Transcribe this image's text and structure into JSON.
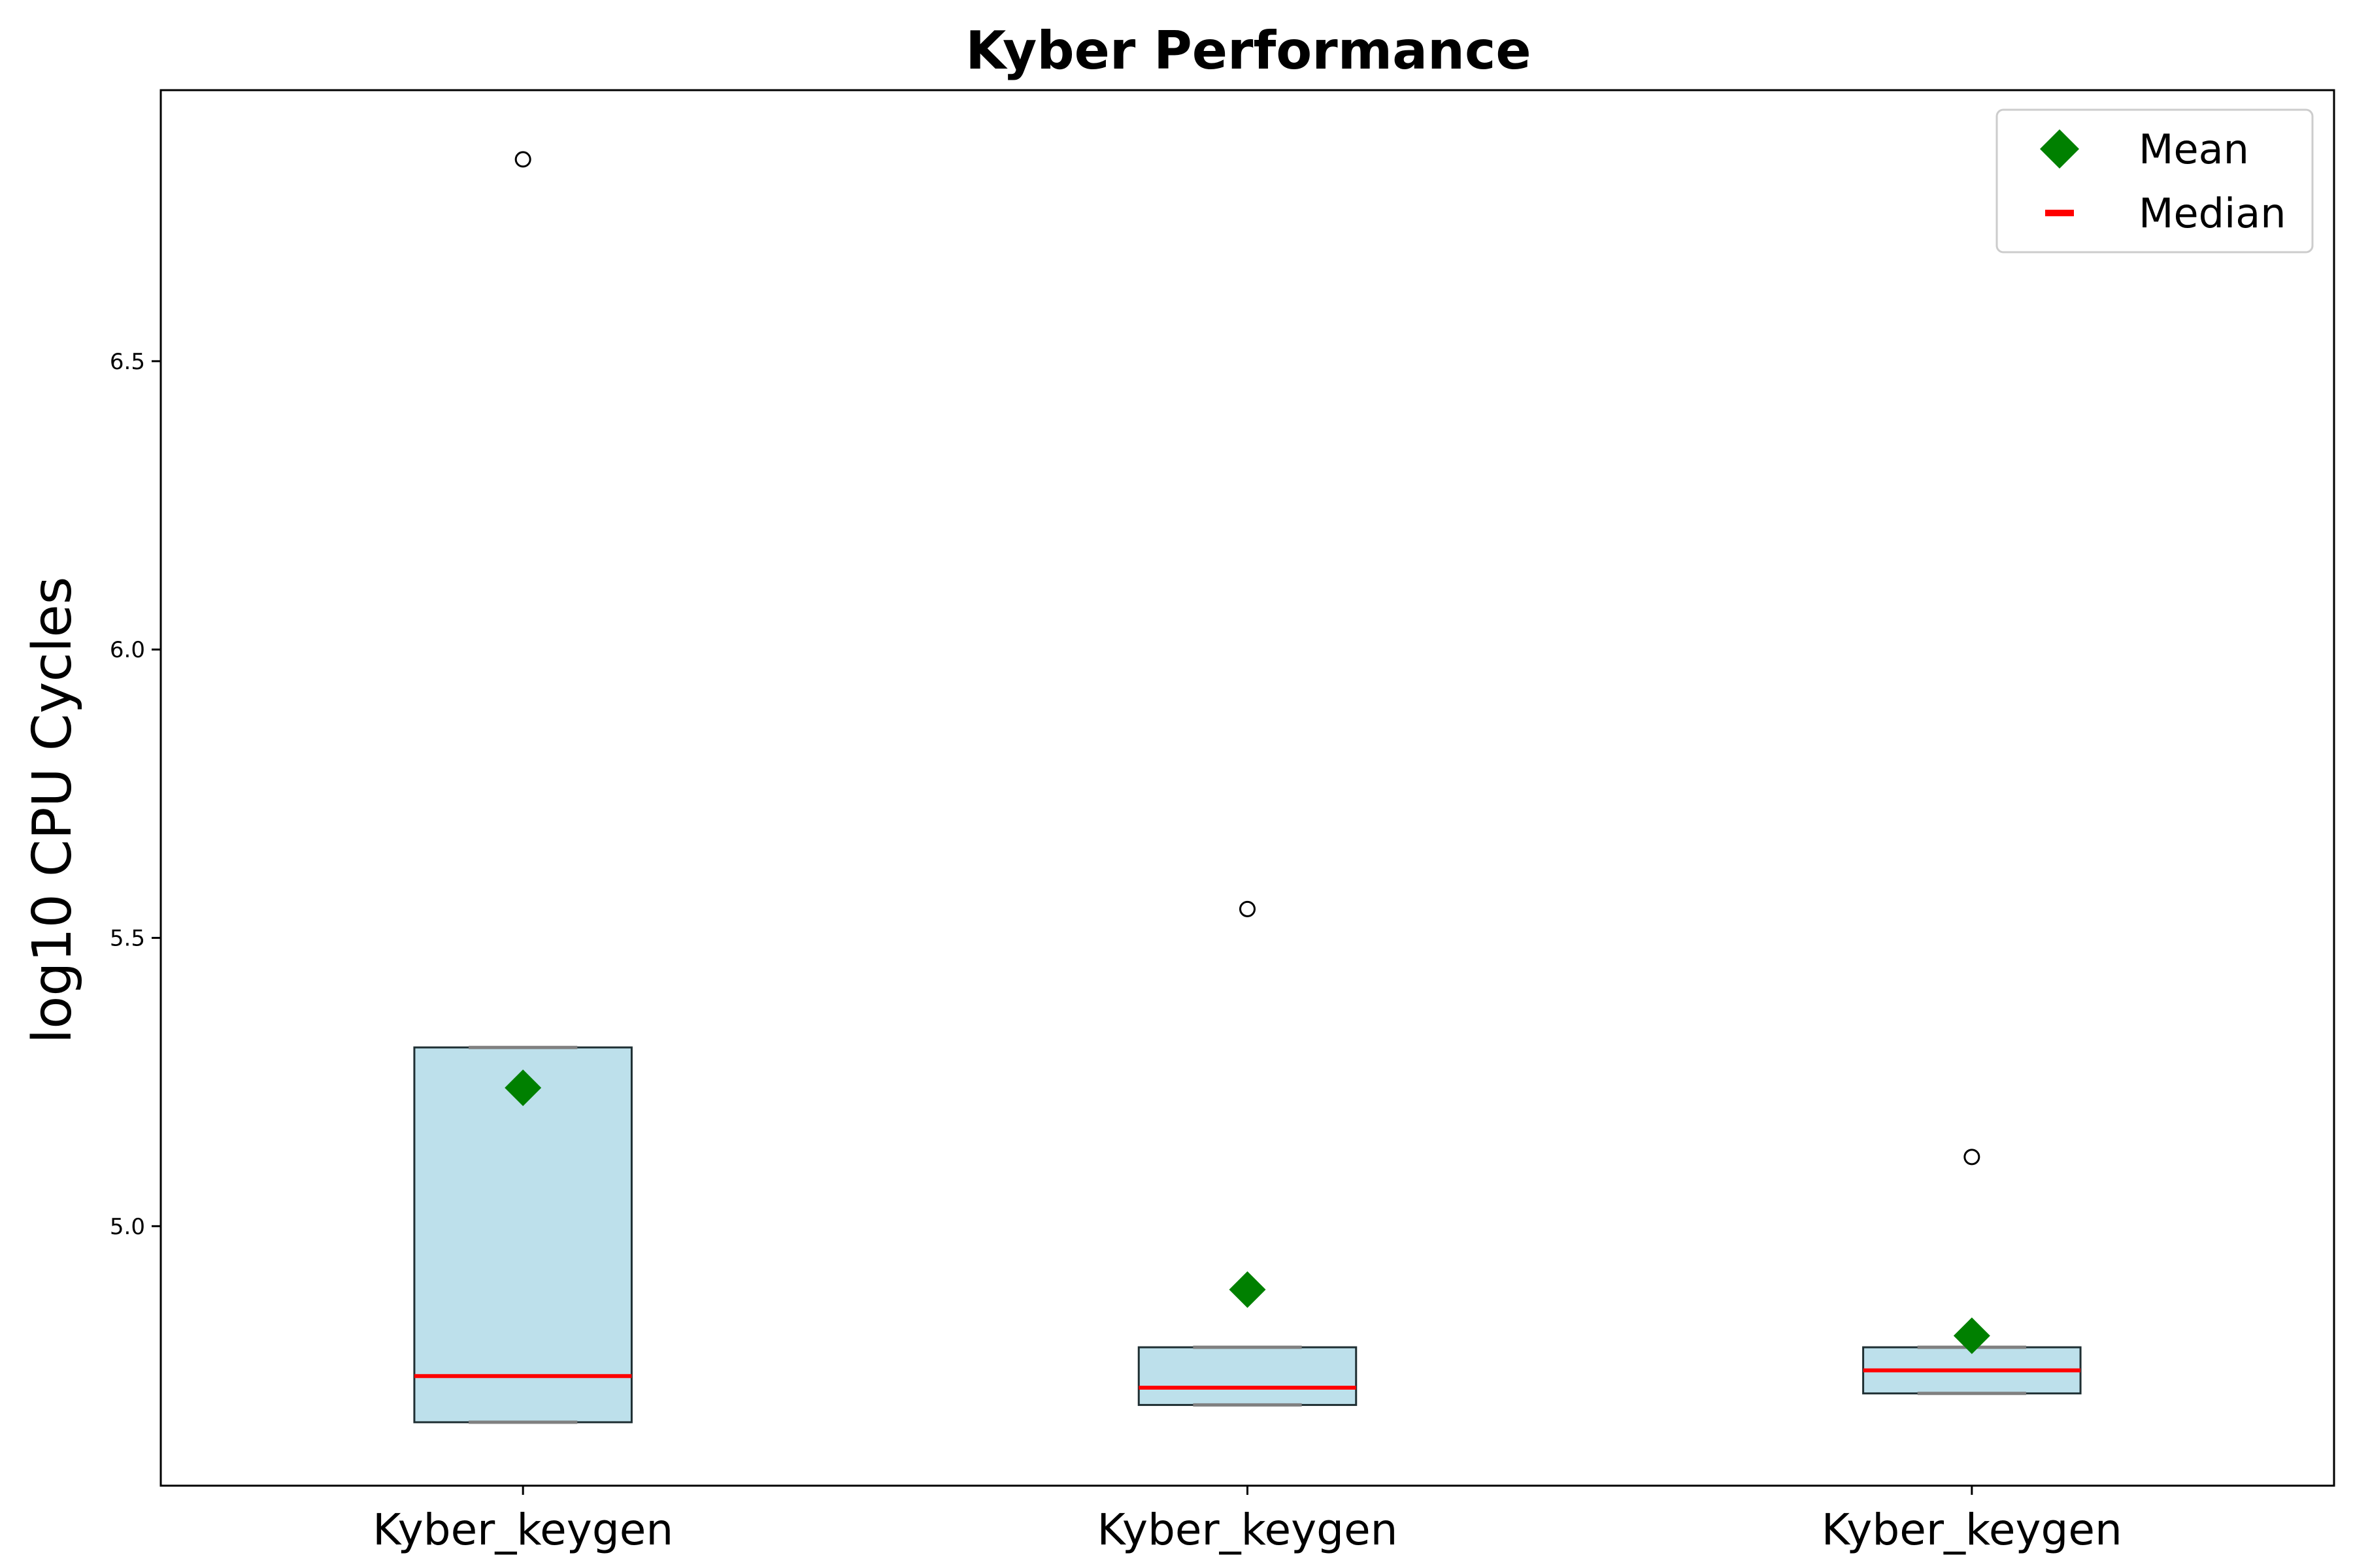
{
  "chart_data": {
    "type": "box",
    "title": "Kyber Performance",
    "xlabel": "",
    "ylabel": "log10 CPU Cycles",
    "ylim": [
      4.55,
      6.97
    ],
    "yticks": [
      5.0,
      5.5,
      6.0,
      6.5
    ],
    "ytick_labels": [
      "5.0",
      "5.5",
      "6.0",
      "6.5"
    ],
    "grid": false,
    "legend": {
      "placement": "top-right",
      "entries": [
        {
          "label": "Mean",
          "marker": "diamond",
          "color": "#008000"
        },
        {
          "label": "Median",
          "marker": "line",
          "color": "#ff0000"
        }
      ]
    },
    "categories": [
      "Kyber_keygen",
      "Kyber_keygen",
      "Kyber_keygen"
    ],
    "boxes": [
      {
        "whisker_low": 4.66,
        "q1": 4.66,
        "median": 4.74,
        "q3": 5.31,
        "whisker_high": 5.31,
        "mean": 5.24,
        "outliers": [
          6.85
        ]
      },
      {
        "whisker_low": 4.69,
        "q1": 4.69,
        "median": 4.72,
        "q3": 4.79,
        "whisker_high": 4.79,
        "mean": 4.89,
        "outliers": [
          5.55
        ]
      },
      {
        "whisker_low": 4.71,
        "q1": 4.71,
        "median": 4.75,
        "q3": 4.79,
        "whisker_high": 4.79,
        "mean": 4.81,
        "outliers": [
          5.12
        ]
      }
    ],
    "colors": {
      "box_fill": "#add8e6",
      "box_edge": "#1f2f33",
      "whisker": "#808080",
      "median": "#ff0000",
      "mean": "#008000",
      "outlier_edge": "#000000"
    }
  }
}
